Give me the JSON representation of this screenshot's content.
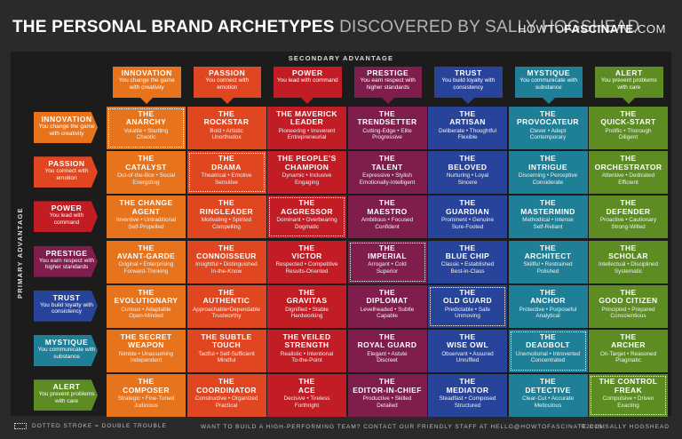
{
  "header": {
    "title_bold": "THE PERSONAL BRAND ARCHETYPES",
    "title_light": "DISCOVERED BY SALLY HOGSHEAD",
    "site_pre": "HOWTO",
    "site_bold": "FASCINATE",
    "site_post": ".COM"
  },
  "secondary_label": "SECONDARY ADVANTAGE",
  "primary_label": "PRIMARY ADVANTAGE",
  "advantages": [
    {
      "name": "INNOVATION",
      "desc": "You change the game with creativity",
      "color": "#e8731d"
    },
    {
      "name": "PASSION",
      "desc": "You connect with emotion",
      "color": "#e0461f"
    },
    {
      "name": "POWER",
      "desc": "You lead with command",
      "color": "#c21c25"
    },
    {
      "name": "PRESTIGE",
      "desc": "You earn respect with higher standards",
      "color": "#7f1d4d"
    },
    {
      "name": "TRUST",
      "desc": "You build loyalty with consistency",
      "color": "#27449a"
    },
    {
      "name": "MYSTIQUE",
      "desc": "You communicate with substance",
      "color": "#1f7f97"
    },
    {
      "name": "ALERT",
      "desc": "You prevent problems with care",
      "color": "#5d8d22"
    }
  ],
  "grid": [
    [
      {
        "title": "THE\nANARCHY",
        "words": "Volatile • Startling\nChaotic",
        "dbl": true
      },
      {
        "title": "THE\nROCKSTAR",
        "words": "Bold • Artistic\nUnorthodox"
      },
      {
        "title": "THE MAVERICK\nLEADER",
        "words": "Pioneering • Irreverent\nEntrepreneurial"
      },
      {
        "title": "THE\nTRENDSETTER",
        "words": "Cutting-Edge • Elite\nProgressive"
      },
      {
        "title": "THE\nARTISAN",
        "words": "Deliberate • Thoughtful\nFlexible"
      },
      {
        "title": "THE\nPROVOCATEUR",
        "words": "Clever • Adept\nContemporary"
      },
      {
        "title": "THE\nQUICK-START",
        "words": "Prolific • Thorough\nDiligent"
      }
    ],
    [
      {
        "title": "THE\nCATALYST",
        "words": "Out-of-the-Box • Social\nEnergizing"
      },
      {
        "title": "THE\nDRAMA",
        "words": "Theatrical • Emotive\nSensitive",
        "dbl": true
      },
      {
        "title": "THE PEOPLE'S\nCHAMPION",
        "words": "Dynamic • Inclusive\nEngaging"
      },
      {
        "title": "THE\nTALENT",
        "words": "Expressive • Stylish\nEmotionally-Intelligent"
      },
      {
        "title": "THE\nBELOVED",
        "words": "Nurturing • Loyal\nSincere"
      },
      {
        "title": "THE\nINTRIGUE",
        "words": "Discerning • Perceptive\nConsiderate"
      },
      {
        "title": "THE\nORCHESTRATOR",
        "words": "Attentive • Dedicated\nEfficient"
      }
    ],
    [
      {
        "title": "THE CHANGE\nAGENT",
        "words": "Inventive • Untraditional\nSelf-Propelled"
      },
      {
        "title": "THE\nRINGLEADER",
        "words": "Motivating • Spirited\nCompelling"
      },
      {
        "title": "THE\nAGGRESSOR",
        "words": "Dominant • Overbearing\nDogmatic",
        "dbl": true
      },
      {
        "title": "THE\nMAESTRO",
        "words": "Ambitious • Focused\nConfident"
      },
      {
        "title": "THE\nGUARDIAN",
        "words": "Prominent • Genuine\nSure-Footed"
      },
      {
        "title": "THE\nMASTERMIND",
        "words": "Methodical • Intense\nSelf-Reliant"
      },
      {
        "title": "THE\nDEFENDER",
        "words": "Proactive • Cautionary\nStrong-Willed"
      }
    ],
    [
      {
        "title": "THE\nAVANT-GARDE",
        "words": "Original • Enterprising\nForward-Thinking"
      },
      {
        "title": "THE\nCONNOISSEUR",
        "words": "Insightful • Distinguished\nIn-the-Know"
      },
      {
        "title": "THE\nVICTOR",
        "words": "Respected • Competitive\nResults-Oriented"
      },
      {
        "title": "THE\nIMPERIAL",
        "words": "Arrogant • Cold\nSuperior",
        "dbl": true
      },
      {
        "title": "THE\nBLUE CHIP",
        "words": "Classic • Established\nBest-in-Class"
      },
      {
        "title": "THE\nARCHITECT",
        "words": "Skillful • Restrained\nPolished"
      },
      {
        "title": "THE\nSCHOLAR",
        "words": "Intellectual • Disciplined\nSystematic"
      }
    ],
    [
      {
        "title": "THE\nEVOLUTIONARY",
        "words": "Curious • Adaptable\nOpen-Minded"
      },
      {
        "title": "THE\nAUTHENTIC",
        "words": "Approachable•Dependable\nTrustworthy"
      },
      {
        "title": "THE\nGRAVITAS",
        "words": "Dignified • Stable\nHardworking"
      },
      {
        "title": "THE\nDIPLOMAT",
        "words": "Levelheaded • Subtle\nCapable"
      },
      {
        "title": "THE\nOLD GUARD",
        "words": "Predictable • Safe\nUnmoving",
        "dbl": true
      },
      {
        "title": "THE\nANCHOR",
        "words": "Protective • Purposeful\nAnalytical"
      },
      {
        "title": "THE\nGOOD CITIZEN",
        "words": "Principled • Prepared\nConscientious"
      }
    ],
    [
      {
        "title": "THE SECRET\nWEAPON",
        "words": "Nimble • Unassuming\nIndependent"
      },
      {
        "title": "THE SUBTLE\nTOUCH",
        "words": "Tactful • Self-Sufficient\nMindful"
      },
      {
        "title": "THE VEILED\nSTRENGTH",
        "words": "Realistic • Intentional\nTo-the-Point"
      },
      {
        "title": "THE\nROYAL GUARD",
        "words": "Elegant • Astute\nDiscreet"
      },
      {
        "title": "THE\nWISE OWL",
        "words": "Observant • Assured\nUnruffled"
      },
      {
        "title": "THE\nDEADBOLT",
        "words": "Unemotional • Introverted\nConcentrated",
        "dbl": true
      },
      {
        "title": "THE\nARCHER",
        "words": "On-Target • Reasoned\nPragmatic"
      }
    ],
    [
      {
        "title": "THE\nCOMPOSER",
        "words": "Strategic • Fine-Tuned\nJudicious"
      },
      {
        "title": "THE\nCOORDINATOR",
        "words": "Constructive • Organized\nPractical"
      },
      {
        "title": "THE\nACE",
        "words": "Decisive • Tireless\nForthright"
      },
      {
        "title": "THE\nEDITOR-IN-CHIEF",
        "words": "Productive • Skilled\nDetailed"
      },
      {
        "title": "THE\nMEDIATOR",
        "words": "Steadfast • Composed\nStructured"
      },
      {
        "title": "THE\nDETECTIVE",
        "words": "Clear-Cut • Accurate\nMeticulous"
      },
      {
        "title": "THE CONTROL\nFREAK",
        "words": "Compulsive • Driven\nExacting",
        "dbl": true
      }
    ]
  ],
  "footer": {
    "legend": "DOTTED STROKE = DOUBLE TROUBLE",
    "contact": "WANT TO BUILD A HIGH-PERFORMING TEAM? CONTACT OUR FRIENDLY STAFF AT HELLO@HOWTOFASCINATE.COM",
    "copyright": "©2015 SALLY HOGSHEAD"
  }
}
